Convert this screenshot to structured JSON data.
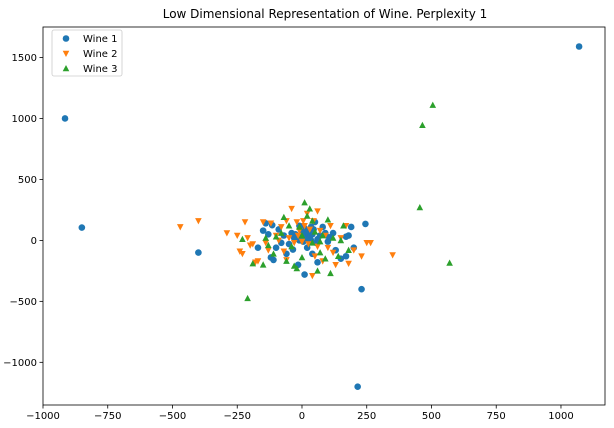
{
  "chart_data": {
    "type": "scatter",
    "title": "Low Dimensional Representation of Wine. Perplexity 1",
    "xlabel": "",
    "ylabel": "",
    "xlim": [
      -1000,
      1170
    ],
    "ylim": [
      -1350,
      1750
    ],
    "x_ticks": [
      -1000,
      -750,
      -500,
      -250,
      0,
      250,
      500,
      750,
      1000
    ],
    "y_ticks": [
      -1000,
      -500,
      0,
      500,
      1000,
      1500
    ],
    "x_tick_labels": [
      "−1000",
      "−750",
      "−500",
      "−250",
      "0",
      "250",
      "500",
      "750",
      "1000"
    ],
    "y_tick_labels": [
      "−1000",
      "−500",
      "0",
      "500",
      "1000",
      "1500"
    ],
    "grid": false,
    "legend_position": "top-left",
    "series": [
      {
        "name": "Wine 1",
        "marker": "circle",
        "color": "#1f77b4",
        "points": [
          [
            1070,
            1590
          ],
          [
            -915,
            1000
          ],
          [
            -850,
            105
          ],
          [
            -400,
            -100
          ],
          [
            215,
            -1200
          ],
          [
            230,
            -400
          ],
          [
            245,
            135
          ],
          [
            -140,
            140
          ],
          [
            -115,
            125
          ],
          [
            -150,
            80
          ],
          [
            -90,
            90
          ],
          [
            -70,
            40
          ],
          [
            -40,
            60
          ],
          [
            -20,
            30
          ],
          [
            -10,
            0
          ],
          [
            0,
            50
          ],
          [
            5,
            80
          ],
          [
            10,
            100
          ],
          [
            15,
            30
          ],
          [
            20,
            60
          ],
          [
            25,
            40
          ],
          [
            30,
            20
          ],
          [
            35,
            0
          ],
          [
            40,
            50
          ],
          [
            45,
            90
          ],
          [
            50,
            150
          ],
          [
            55,
            -20
          ],
          [
            60,
            10
          ],
          [
            70,
            40
          ],
          [
            80,
            110
          ],
          [
            -10,
            120
          ],
          [
            -30,
            20
          ],
          [
            -50,
            -30
          ],
          [
            -60,
            -110
          ],
          [
            -110,
            -160
          ],
          [
            -120,
            -140
          ],
          [
            -100,
            -60
          ],
          [
            -130,
            50
          ],
          [
            10,
            -280
          ],
          [
            100,
            -10
          ],
          [
            120,
            60
          ],
          [
            130,
            -80
          ],
          [
            150,
            -150
          ],
          [
            170,
            -130
          ],
          [
            180,
            40
          ],
          [
            190,
            110
          ],
          [
            200,
            -60
          ],
          [
            60,
            -180
          ],
          [
            40,
            -110
          ],
          [
            20,
            -60
          ],
          [
            -80,
            -20
          ],
          [
            0,
            0
          ],
          [
            -5,
            20
          ],
          [
            5,
            -10
          ],
          [
            15,
            10
          ],
          [
            25,
            70
          ],
          [
            -25,
            50
          ],
          [
            35,
            110
          ],
          [
            90,
            60
          ],
          [
            105,
            25
          ],
          [
            -35,
            -75
          ],
          [
            -15,
            -200
          ],
          [
            -170,
            -60
          ],
          [
            170,
            30
          ]
        ]
      },
      {
        "name": "Wine 2",
        "marker": "triangle-down",
        "color": "#ff7f0e",
        "points": [
          [
            -470,
            110
          ],
          [
            -400,
            160
          ],
          [
            -290,
            60
          ],
          [
            -240,
            -90
          ],
          [
            -230,
            -110
          ],
          [
            -220,
            150
          ],
          [
            -210,
            20
          ],
          [
            -200,
            -40
          ],
          [
            -180,
            -180
          ],
          [
            -150,
            150
          ],
          [
            -140,
            -20
          ],
          [
            -120,
            140
          ],
          [
            -100,
            40
          ],
          [
            -90,
            0
          ],
          [
            -80,
            110
          ],
          [
            -70,
            -90
          ],
          [
            -60,
            160
          ],
          [
            -50,
            20
          ],
          [
            -40,
            260
          ],
          [
            -30,
            -20
          ],
          [
            -20,
            150
          ],
          [
            -10,
            80
          ],
          [
            0,
            -10
          ],
          [
            10,
            120
          ],
          [
            20,
            220
          ],
          [
            25,
            -30
          ],
          [
            30,
            90
          ],
          [
            40,
            -290
          ],
          [
            45,
            160
          ],
          [
            50,
            -130
          ],
          [
            60,
            -50
          ],
          [
            70,
            80
          ],
          [
            80,
            -170
          ],
          [
            90,
            40
          ],
          [
            100,
            -60
          ],
          [
            110,
            120
          ],
          [
            130,
            -200
          ],
          [
            150,
            20
          ],
          [
            170,
            120
          ],
          [
            200,
            -80
          ],
          [
            230,
            -130
          ],
          [
            250,
            -20
          ],
          [
            265,
            -20
          ],
          [
            350,
            -120
          ],
          [
            -170,
            -170
          ],
          [
            -130,
            -80
          ],
          [
            -60,
            -160
          ],
          [
            -15,
            40
          ],
          [
            5,
            160
          ],
          [
            60,
            240
          ],
          [
            120,
            -100
          ],
          [
            180,
            -190
          ],
          [
            -250,
            40
          ],
          [
            -190,
            -30
          ]
        ]
      },
      {
        "name": "Wine 3",
        "marker": "triangle-up",
        "color": "#2ca02c",
        "points": [
          [
            505,
            1110
          ],
          [
            465,
            945
          ],
          [
            455,
            270
          ],
          [
            570,
            -185
          ],
          [
            -210,
            -475
          ],
          [
            -230,
            10
          ],
          [
            -190,
            -190
          ],
          [
            -150,
            -200
          ],
          [
            -140,
            20
          ],
          [
            -130,
            -40
          ],
          [
            -110,
            -110
          ],
          [
            -80,
            60
          ],
          [
            -70,
            190
          ],
          [
            -60,
            -170
          ],
          [
            -40,
            -50
          ],
          [
            -30,
            -210
          ],
          [
            -20,
            -230
          ],
          [
            -10,
            110
          ],
          [
            0,
            40
          ],
          [
            10,
            310
          ],
          [
            20,
            200
          ],
          [
            30,
            260
          ],
          [
            40,
            -20
          ],
          [
            50,
            70
          ],
          [
            60,
            -250
          ],
          [
            70,
            -100
          ],
          [
            80,
            40
          ],
          [
            90,
            -150
          ],
          [
            100,
            170
          ],
          [
            110,
            -270
          ],
          [
            120,
            20
          ],
          [
            140,
            -130
          ],
          [
            160,
            120
          ],
          [
            180,
            -80
          ],
          [
            -100,
            30
          ],
          [
            -50,
            120
          ],
          [
            0,
            -140
          ],
          [
            40,
            160
          ],
          [
            70,
            -10
          ],
          [
            150,
            0
          ]
        ]
      }
    ]
  }
}
